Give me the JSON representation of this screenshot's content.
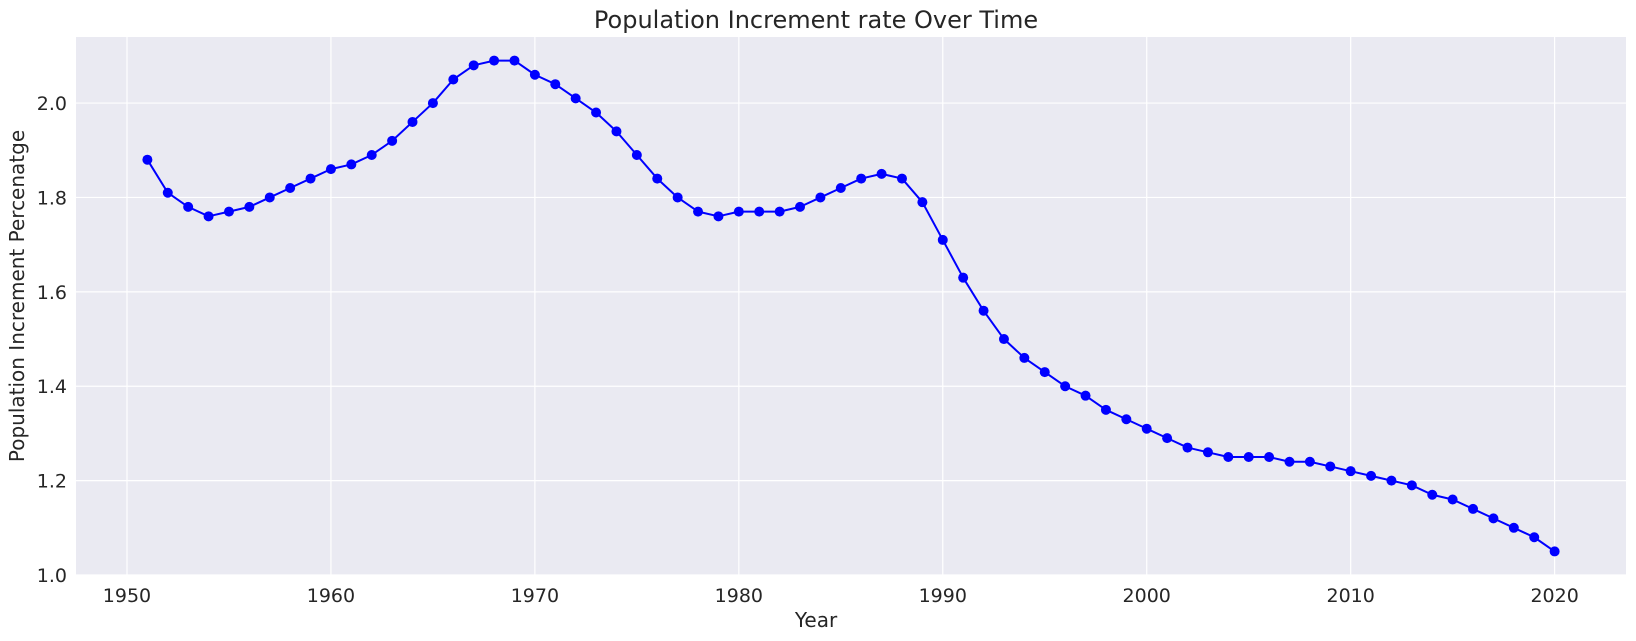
{
  "chart_data": {
    "type": "line",
    "title": "Population Increment rate Over Time",
    "xlabel": "Year",
    "ylabel": "Population Increment Percenatge",
    "xlim": [
      1947.5,
      2023.5
    ],
    "ylim": [
      1.0,
      2.14
    ],
    "xticks": [
      1950,
      1960,
      1970,
      1980,
      1990,
      2000,
      2010,
      2020
    ],
    "yticks": [
      1.0,
      1.2,
      1.4,
      1.6,
      1.8,
      2.0
    ],
    "ytick_labels": [
      "1.0",
      "1.2",
      "1.4",
      "1.6",
      "1.8",
      "2.0"
    ],
    "grid": true,
    "background": "#eaeaf2",
    "grid_color": "#ffffff",
    "series": [
      {
        "color": "#0000ff",
        "marker": "circle",
        "x": [
          1951,
          1952,
          1953,
          1954,
          1955,
          1956,
          1957,
          1958,
          1959,
          1960,
          1961,
          1962,
          1963,
          1964,
          1965,
          1966,
          1967,
          1968,
          1969,
          1970,
          1971,
          1972,
          1973,
          1974,
          1975,
          1976,
          1977,
          1978,
          1979,
          1980,
          1981,
          1982,
          1983,
          1984,
          1985,
          1986,
          1987,
          1988,
          1989,
          1990,
          1991,
          1992,
          1993,
          1994,
          1995,
          1996,
          1997,
          1998,
          1999,
          2000,
          2001,
          2002,
          2003,
          2004,
          2005,
          2006,
          2007,
          2008,
          2009,
          2010,
          2011,
          2012,
          2013,
          2014,
          2015,
          2016,
          2017,
          2018,
          2019,
          2020
        ],
        "values": [
          1.88,
          1.81,
          1.78,
          1.76,
          1.77,
          1.78,
          1.8,
          1.82,
          1.84,
          1.86,
          1.87,
          1.89,
          1.92,
          1.96,
          2.0,
          2.05,
          2.08,
          2.09,
          2.09,
          2.06,
          2.04,
          2.01,
          1.98,
          1.94,
          1.89,
          1.84,
          1.8,
          1.77,
          1.76,
          1.77,
          1.77,
          1.77,
          1.78,
          1.8,
          1.82,
          1.84,
          1.85,
          1.84,
          1.79,
          1.71,
          1.63,
          1.56,
          1.5,
          1.46,
          1.43,
          1.4,
          1.38,
          1.35,
          1.33,
          1.31,
          1.29,
          1.27,
          1.26,
          1.25,
          1.25,
          1.25,
          1.24,
          1.24,
          1.23,
          1.22,
          1.21,
          1.2,
          1.19,
          1.17,
          1.16,
          1.14,
          1.12,
          1.1,
          1.08,
          1.05
        ]
      }
    ]
  }
}
